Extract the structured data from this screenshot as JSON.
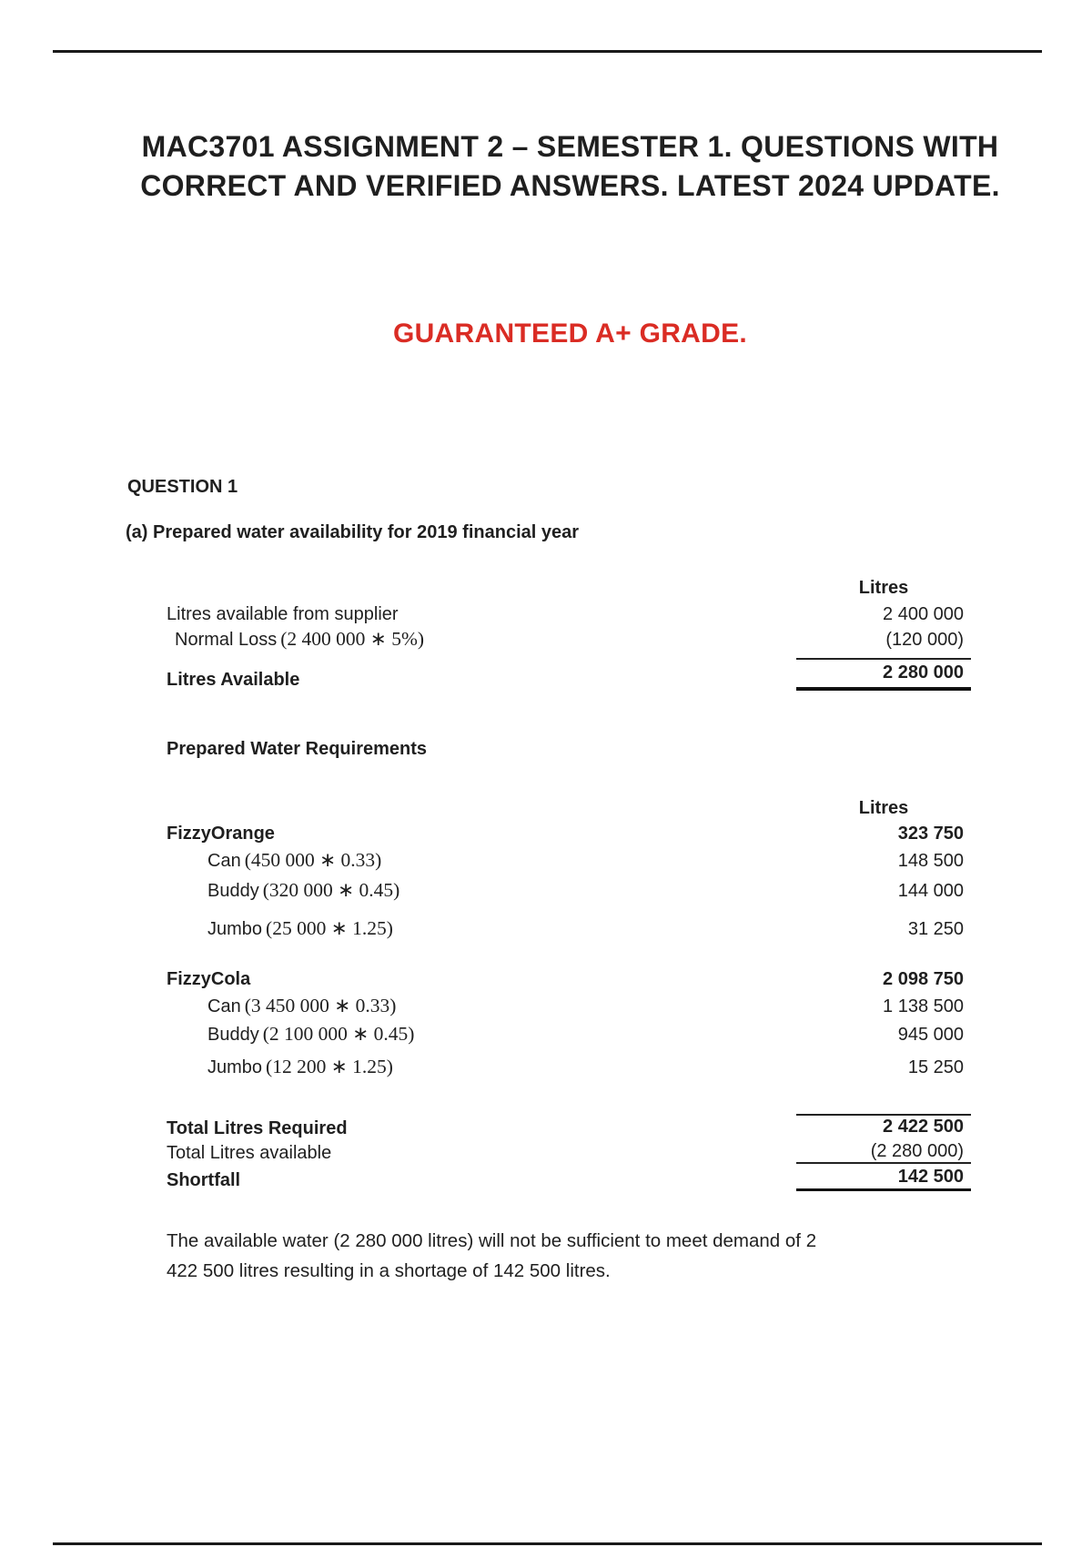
{
  "page": {
    "title": "MAC3701 ASSIGNMENT 2 – SEMESTER 1. QUESTIONS WITH CORRECT AND VERIFIED ANSWERS. LATEST 2024 UPDATE.",
    "subtitle": "GUARANTEED A+ GRADE.",
    "colors": {
      "accent_red": "#da2c24",
      "text": "#1f1f1f",
      "rule": "#1a1a1a"
    }
  },
  "question": {
    "number_label": "QUESTION 1",
    "part_a_heading": "(a) Prepared water availability for 2019 financial year"
  },
  "availability_table": {
    "column_header": "Litres",
    "rows": [
      {
        "label": "Litres available from supplier",
        "value": "2 400 000"
      },
      {
        "label": "Normal Loss",
        "formula": "(2 400 000 ∗ 5%)",
        "value": "(120 000)"
      },
      {
        "label": "Litres Available",
        "value": "2 280 000"
      }
    ]
  },
  "requirements_section": {
    "heading": "Prepared Water Requirements",
    "column_header": "Litres",
    "rows": [
      {
        "label": "FizzyOrange",
        "value": "323 750"
      },
      {
        "label": "Can",
        "formula": "(450 000 ∗ 0.33)",
        "value": "148 500"
      },
      {
        "label": "Buddy",
        "formula": "(320 000 ∗ 0.45)",
        "value": "144 000"
      },
      {
        "label": "Jumbo",
        "formula": "(25 000 ∗ 1.25)",
        "value": "31 250"
      },
      {
        "label": "FizzyCola",
        "value": "2 098 750"
      },
      {
        "label": "Can",
        "formula": "(3 450 000 ∗ 0.33)",
        "value": "1 138 500"
      },
      {
        "label": "Buddy",
        "formula": "(2 100 000 ∗ 0.45)",
        "value": "945 000"
      },
      {
        "label": "Jumbo",
        "formula": "(12 200 ∗ 1.25)",
        "value": "15 250"
      },
      {
        "label": "Total Litres Required",
        "value": "2 422 500"
      },
      {
        "label": "Total Litres available",
        "value": "(2 280 000)"
      },
      {
        "label": "Shortfall",
        "value": "142 500"
      }
    ]
  },
  "conclusion": {
    "line1": "The available water (2 280 000 litres) will not be sufficient to meet demand of 2",
    "line2": "422 500 litres resulting in a shortage of 142 500 litres."
  }
}
